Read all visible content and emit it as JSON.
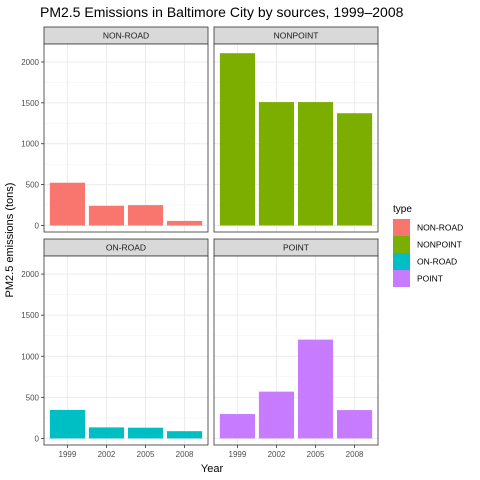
{
  "chart_data": {
    "type": "bar",
    "title": "PM2.5 Emissions in Baltimore City by sources, 1999–2008",
    "xlabel": "Year",
    "ylabel": "PM2.5 emissions (tons)",
    "categories": [
      "1999",
      "2002",
      "2005",
      "2008"
    ],
    "ylim": [
      -80,
      2220
    ],
    "yticks": [
      0,
      500,
      1000,
      1500,
      2000
    ],
    "grid": true,
    "legend": {
      "title": "type",
      "position": "right"
    },
    "series": [
      {
        "name": "NON-ROAD",
        "color": "#F8766D",
        "values": [
          522.94,
          240.85,
          248.93,
          55.82
        ]
      },
      {
        "name": "NONPOINT",
        "color": "#7CAE00",
        "values": [
          2107.63,
          1509.5,
          1509.5,
          1373.21
        ]
      },
      {
        "name": "ON-ROAD",
        "color": "#00BFC4",
        "values": [
          346.82,
          134.31,
          130.43,
          88.28
        ]
      },
      {
        "name": "POINT",
        "color": "#C77CFF",
        "values": [
          296.8,
          569.26,
          1202.49,
          344.98
        ]
      }
    ]
  }
}
